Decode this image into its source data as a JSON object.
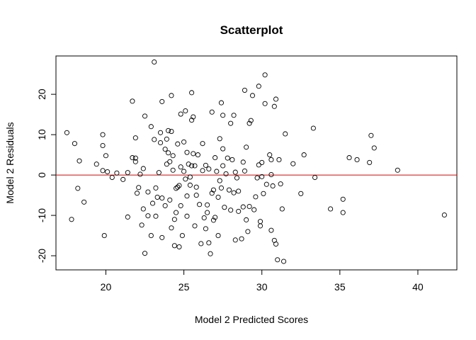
{
  "chart_data": {
    "type": "scatter",
    "title": "Scatterplot",
    "xlabel": "Model 2 Predicted Scores",
    "ylabel": "Model 2 Residuals",
    "xlim": [
      16.8,
      42.5
    ],
    "ylim": [
      -23.5,
      29.5
    ],
    "xticks": [
      20,
      25,
      30,
      35,
      40
    ],
    "yticks": [
      -20,
      -10,
      0,
      10,
      20
    ],
    "reference_line": {
      "y": 0,
      "color": "#dd0000"
    },
    "grid": false,
    "legend": "none",
    "point_style": "open-circle",
    "series": [
      {
        "points": [
          [
            17.5,
            10.5
          ],
          [
            18.0,
            7.8
          ],
          [
            18.3,
            3.5
          ],
          [
            17.8,
            -11.0
          ],
          [
            18.2,
            -3.3
          ],
          [
            18.6,
            -6.7
          ],
          [
            19.4,
            2.7
          ],
          [
            19.8,
            10.0
          ],
          [
            19.8,
            7.3
          ],
          [
            19.8,
            1.1
          ],
          [
            20.1,
            0.8
          ],
          [
            20.0,
            4.8
          ],
          [
            20.4,
            -0.6
          ],
          [
            19.9,
            -15.0
          ],
          [
            20.7,
            0.5
          ],
          [
            21.1,
            -1.1
          ],
          [
            21.4,
            0.6
          ],
          [
            21.4,
            -10.4
          ],
          [
            21.7,
            18.3
          ],
          [
            21.7,
            4.3
          ],
          [
            21.9,
            4.2
          ],
          [
            21.9,
            3.3
          ],
          [
            21.9,
            9.2
          ],
          [
            22.0,
            -4.5
          ],
          [
            22.1,
            -3.1
          ],
          [
            22.2,
            0.2
          ],
          [
            22.4,
            1.6
          ],
          [
            22.4,
            -8.4
          ],
          [
            22.5,
            14.6
          ],
          [
            22.3,
            -12.4
          ],
          [
            22.5,
            -19.4
          ],
          [
            22.7,
            -4.2
          ],
          [
            22.7,
            -10.1
          ],
          [
            22.9,
            12.0
          ],
          [
            22.9,
            -15.0
          ],
          [
            23.1,
            28.0
          ],
          [
            23.1,
            8.8
          ],
          [
            23.0,
            -7.0
          ],
          [
            23.2,
            -3.2
          ],
          [
            23.2,
            -10.2
          ],
          [
            23.3,
            -5.5
          ],
          [
            23.4,
            0.6
          ],
          [
            23.5,
            8.0
          ],
          [
            23.5,
            10.5
          ],
          [
            23.6,
            18.2
          ],
          [
            23.6,
            -5.7
          ],
          [
            23.6,
            -15.5
          ],
          [
            23.8,
            6.4
          ],
          [
            23.8,
            -7.6
          ],
          [
            23.9,
            8.9
          ],
          [
            23.9,
            2.7
          ],
          [
            24.0,
            11.0
          ],
          [
            24.0,
            5.5
          ],
          [
            24.1,
            3.3
          ],
          [
            24.1,
            -6.2
          ],
          [
            24.2,
            10.8
          ],
          [
            24.2,
            19.7
          ],
          [
            24.2,
            -13.1
          ],
          [
            24.3,
            4.8
          ],
          [
            24.3,
            1.2
          ],
          [
            24.4,
            -11.0
          ],
          [
            24.4,
            -17.5
          ],
          [
            24.5,
            -3.3
          ],
          [
            24.5,
            -9.3
          ],
          [
            24.6,
            7.7
          ],
          [
            24.6,
            -3.0
          ],
          [
            24.7,
            -2.6
          ],
          [
            24.7,
            -17.8
          ],
          [
            24.8,
            15.1
          ],
          [
            24.8,
            2.0
          ],
          [
            24.8,
            -7.6
          ],
          [
            24.9,
            -15.0
          ],
          [
            25.0,
            8.2
          ],
          [
            25.0,
            0.9
          ],
          [
            25.1,
            15.9
          ],
          [
            25.1,
            -1.0
          ],
          [
            25.2,
            5.6
          ],
          [
            25.2,
            -5.2
          ],
          [
            25.2,
            -10.2
          ],
          [
            25.3,
            2.7
          ],
          [
            25.4,
            -2.5
          ],
          [
            25.4,
            -0.5
          ],
          [
            25.5,
            13.6
          ],
          [
            25.5,
            20.4
          ],
          [
            25.5,
            2.3
          ],
          [
            25.6,
            14.4
          ],
          [
            25.6,
            5.3
          ],
          [
            25.7,
            2.3
          ],
          [
            25.7,
            -12.6
          ],
          [
            25.8,
            -3.0
          ],
          [
            25.8,
            -5.0
          ],
          [
            25.9,
            5.0
          ],
          [
            26.0,
            -7.3
          ],
          [
            26.1,
            -17.0
          ],
          [
            26.2,
            7.8
          ],
          [
            26.2,
            1.1
          ],
          [
            26.3,
            -10.6
          ],
          [
            26.4,
            2.4
          ],
          [
            26.4,
            -13.3
          ],
          [
            26.5,
            -9.3
          ],
          [
            26.5,
            -7.4
          ],
          [
            26.6,
            1.5
          ],
          [
            26.6,
            -16.8
          ],
          [
            26.7,
            -19.5
          ],
          [
            26.8,
            15.6
          ],
          [
            26.8,
            -4.5
          ],
          [
            26.9,
            -3.7
          ],
          [
            26.9,
            -11.2
          ],
          [
            27.0,
            4.3
          ],
          [
            27.0,
            -10.5
          ],
          [
            27.1,
            0.9
          ],
          [
            27.2,
            -5.5
          ],
          [
            27.2,
            -15.0
          ],
          [
            27.3,
            9.0
          ],
          [
            27.3,
            -1.4
          ],
          [
            27.4,
            17.9
          ],
          [
            27.4,
            -3.2
          ],
          [
            27.5,
            14.8
          ],
          [
            27.5,
            6.5
          ],
          [
            27.5,
            2.3
          ],
          [
            27.6,
            -8.0
          ],
          [
            27.7,
            0.3
          ],
          [
            27.8,
            4.2
          ],
          [
            27.9,
            -3.7
          ],
          [
            28.0,
            -8.7
          ],
          [
            28.0,
            12.8
          ],
          [
            28.1,
            3.8
          ],
          [
            28.2,
            14.8
          ],
          [
            28.2,
            -4.4
          ],
          [
            28.3,
            0.7
          ],
          [
            28.3,
            -16.1
          ],
          [
            28.4,
            -0.7
          ],
          [
            28.5,
            -4.0
          ],
          [
            28.5,
            -9.0
          ],
          [
            28.7,
            -15.8
          ],
          [
            28.8,
            3.2
          ],
          [
            28.8,
            -7.9
          ],
          [
            28.9,
            21.0
          ],
          [
            28.9,
            1.0
          ],
          [
            29.0,
            6.9
          ],
          [
            29.0,
            -11.1
          ],
          [
            29.1,
            -14.0
          ],
          [
            29.2,
            12.8
          ],
          [
            29.2,
            -7.8
          ],
          [
            29.3,
            13.5
          ],
          [
            29.4,
            19.7
          ],
          [
            29.5,
            -8.6
          ],
          [
            29.6,
            -5.4
          ],
          [
            29.7,
            -0.7
          ],
          [
            29.8,
            22.0
          ],
          [
            29.8,
            2.5
          ],
          [
            29.9,
            -11.5
          ],
          [
            29.9,
            -12.6
          ],
          [
            30.0,
            3.1
          ],
          [
            30.0,
            -0.4
          ],
          [
            30.1,
            -4.6
          ],
          [
            30.2,
            24.8
          ],
          [
            30.2,
            17.7
          ],
          [
            30.3,
            -2.3
          ],
          [
            30.5,
            5.0
          ],
          [
            30.6,
            3.8
          ],
          [
            30.6,
            0.1
          ],
          [
            30.6,
            -13.7
          ],
          [
            30.7,
            -2.7
          ],
          [
            30.8,
            17.0
          ],
          [
            30.8,
            -16.2
          ],
          [
            30.9,
            18.8
          ],
          [
            30.9,
            -17.1
          ],
          [
            31.0,
            -21.0
          ],
          [
            31.1,
            3.8
          ],
          [
            31.2,
            -2.2
          ],
          [
            31.3,
            -8.4
          ],
          [
            31.4,
            -21.4
          ],
          [
            31.5,
            10.2
          ],
          [
            32.0,
            2.8
          ],
          [
            32.5,
            -4.6
          ],
          [
            32.7,
            5.0
          ],
          [
            33.3,
            11.6
          ],
          [
            33.4,
            -0.6
          ],
          [
            34.4,
            -8.4
          ],
          [
            35.2,
            -6.0
          ],
          [
            35.2,
            -9.3
          ],
          [
            35.6,
            4.3
          ],
          [
            36.1,
            3.8
          ],
          [
            36.9,
            3.1
          ],
          [
            37.0,
            9.8
          ],
          [
            37.2,
            6.7
          ],
          [
            38.7,
            1.2
          ],
          [
            41.7,
            -9.9
          ]
        ]
      }
    ]
  }
}
